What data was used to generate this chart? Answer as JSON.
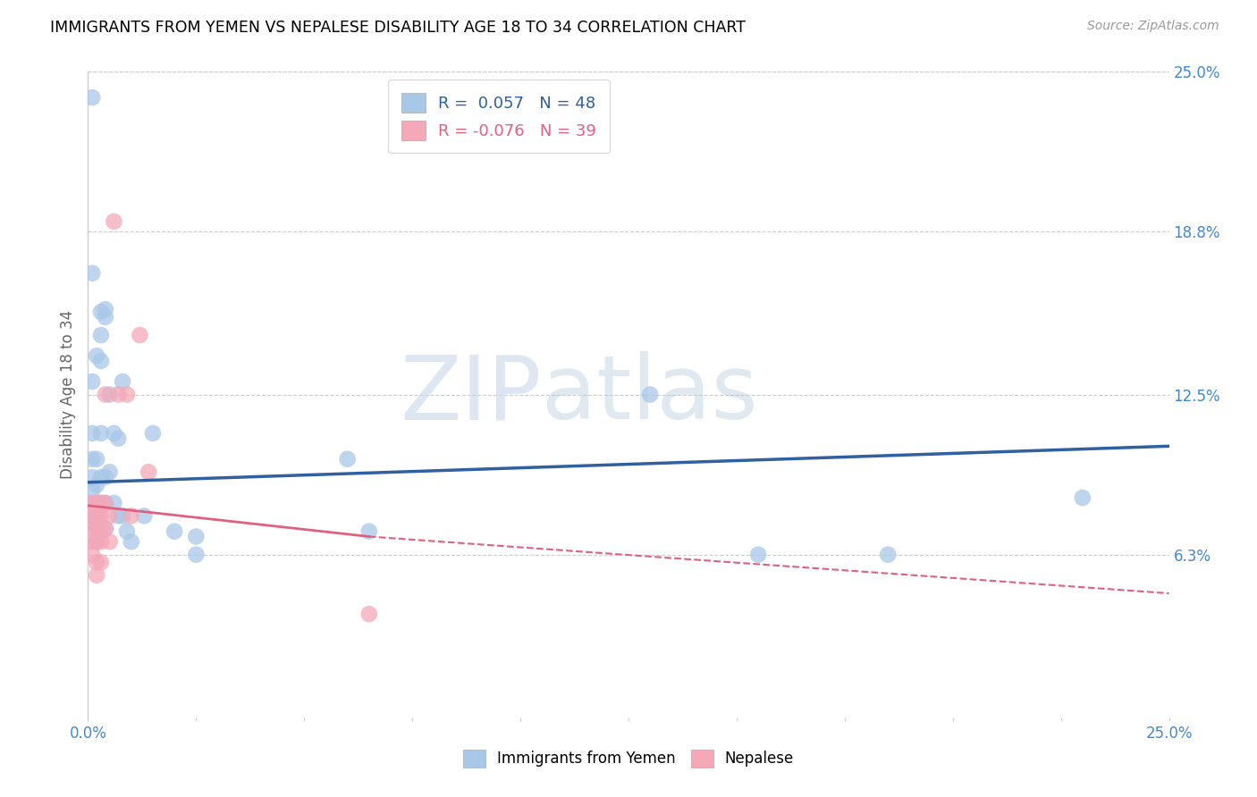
{
  "title": "IMMIGRANTS FROM YEMEN VS NEPALESE DISABILITY AGE 18 TO 34 CORRELATION CHART",
  "source": "Source: ZipAtlas.com",
  "ylabel": "Disability Age 18 to 34",
  "xlim": [
    0.0,
    0.25
  ],
  "ylim": [
    0.0,
    0.25
  ],
  "ytick_labels": [
    "6.3%",
    "12.5%",
    "18.8%",
    "25.0%"
  ],
  "ytick_values": [
    0.063,
    0.125,
    0.188,
    0.25
  ],
  "color_blue": "#a8c8e8",
  "color_pink": "#f4a8b8",
  "line_blue": "#3060a0",
  "line_pink": "#e06080",
  "watermark_zip": "ZIP",
  "watermark_atlas": "atlas",
  "blue_points": [
    [
      0.001,
      0.24
    ],
    [
      0.001,
      0.172
    ],
    [
      0.001,
      0.13
    ],
    [
      0.001,
      0.11
    ],
    [
      0.001,
      0.1
    ],
    [
      0.001,
      0.093
    ],
    [
      0.001,
      0.088
    ],
    [
      0.001,
      0.083
    ],
    [
      0.001,
      0.078
    ],
    [
      0.002,
      0.14
    ],
    [
      0.002,
      0.1
    ],
    [
      0.002,
      0.09
    ],
    [
      0.002,
      0.083
    ],
    [
      0.002,
      0.078
    ],
    [
      0.002,
      0.073
    ],
    [
      0.002,
      0.068
    ],
    [
      0.003,
      0.157
    ],
    [
      0.003,
      0.148
    ],
    [
      0.003,
      0.138
    ],
    [
      0.003,
      0.11
    ],
    [
      0.003,
      0.093
    ],
    [
      0.003,
      0.083
    ],
    [
      0.004,
      0.158
    ],
    [
      0.004,
      0.155
    ],
    [
      0.004,
      0.093
    ],
    [
      0.004,
      0.083
    ],
    [
      0.004,
      0.073
    ],
    [
      0.005,
      0.125
    ],
    [
      0.005,
      0.095
    ],
    [
      0.006,
      0.11
    ],
    [
      0.006,
      0.083
    ],
    [
      0.007,
      0.108
    ],
    [
      0.007,
      0.078
    ],
    [
      0.008,
      0.13
    ],
    [
      0.008,
      0.078
    ],
    [
      0.009,
      0.072
    ],
    [
      0.01,
      0.068
    ],
    [
      0.013,
      0.078
    ],
    [
      0.015,
      0.11
    ],
    [
      0.02,
      0.072
    ],
    [
      0.025,
      0.07
    ],
    [
      0.025,
      0.063
    ],
    [
      0.06,
      0.1
    ],
    [
      0.065,
      0.072
    ],
    [
      0.13,
      0.125
    ],
    [
      0.155,
      0.063
    ],
    [
      0.185,
      0.063
    ],
    [
      0.23,
      0.085
    ]
  ],
  "pink_points": [
    [
      0.001,
      0.083
    ],
    [
      0.001,
      0.078
    ],
    [
      0.001,
      0.073
    ],
    [
      0.001,
      0.068
    ],
    [
      0.001,
      0.063
    ],
    [
      0.002,
      0.083
    ],
    [
      0.002,
      0.078
    ],
    [
      0.002,
      0.073
    ],
    [
      0.002,
      0.068
    ],
    [
      0.002,
      0.06
    ],
    [
      0.002,
      0.055
    ],
    [
      0.003,
      0.083
    ],
    [
      0.003,
      0.078
    ],
    [
      0.003,
      0.073
    ],
    [
      0.003,
      0.068
    ],
    [
      0.003,
      0.06
    ],
    [
      0.004,
      0.083
    ],
    [
      0.004,
      0.073
    ],
    [
      0.004,
      0.125
    ],
    [
      0.005,
      0.078
    ],
    [
      0.005,
      0.068
    ],
    [
      0.006,
      0.192
    ],
    [
      0.007,
      0.125
    ],
    [
      0.009,
      0.125
    ],
    [
      0.01,
      0.078
    ],
    [
      0.012,
      0.148
    ],
    [
      0.014,
      0.095
    ],
    [
      0.065,
      0.04
    ]
  ],
  "blue_line": [
    [
      0.0,
      0.091
    ],
    [
      0.25,
      0.105
    ]
  ],
  "pink_line_solid": [
    [
      0.0,
      0.082
    ],
    [
      0.065,
      0.07
    ]
  ],
  "pink_line_dashed": [
    [
      0.065,
      0.07
    ],
    [
      0.25,
      0.048
    ]
  ]
}
